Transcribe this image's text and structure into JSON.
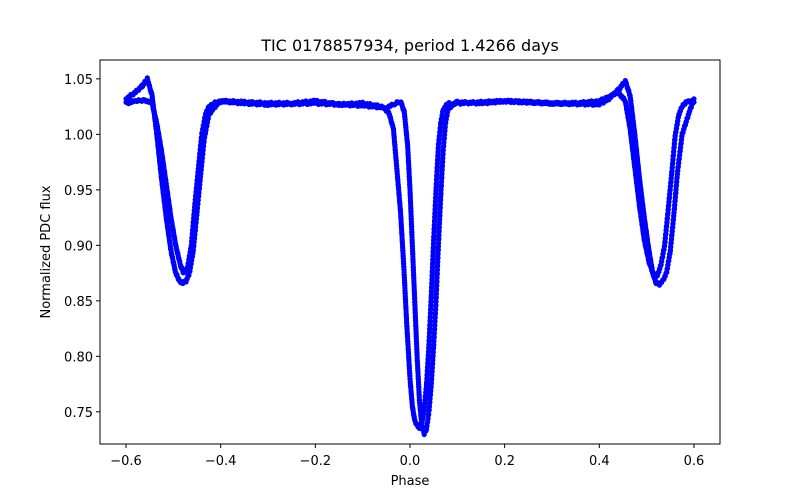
{
  "chart_data": {
    "type": "scatter",
    "title": "TIC 0178857934, period 1.4266 days",
    "xlabel": "Phase",
    "ylabel": "Normalized PDC flux",
    "xlim": [
      -0.655,
      0.655
    ],
    "ylim": [
      0.721,
      1.067
    ],
    "xticks": [
      -0.6,
      -0.4,
      -0.2,
      0.0,
      0.2,
      0.4,
      0.6
    ],
    "xtick_labels": [
      "−0.6",
      "−0.4",
      "−0.2",
      "0.0",
      "0.2",
      "0.4",
      "0.6"
    ],
    "yticks": [
      0.75,
      0.8,
      0.85,
      0.9,
      0.95,
      1.0,
      1.05
    ],
    "ytick_labels": [
      "0.75",
      "0.80",
      "0.85",
      "0.90",
      "0.95",
      "1.00",
      "1.05"
    ],
    "grid": false,
    "legend": "none",
    "marker_color": "#0000ff",
    "series": [
      {
        "x": [
          -0.6,
          -0.58,
          -0.56,
          -0.545,
          -0.535,
          -0.525,
          -0.515,
          -0.505,
          -0.495,
          -0.485,
          -0.478,
          -0.47,
          -0.462,
          -0.455,
          -0.447,
          -0.44,
          -0.432,
          -0.425,
          -0.415,
          -0.4,
          -0.35,
          -0.3,
          -0.25,
          -0.2,
          -0.15,
          -0.1,
          -0.06,
          -0.045,
          -0.035,
          -0.028,
          -0.02,
          -0.013,
          -0.007,
          0.0,
          0.005,
          0.01,
          0.015,
          0.02,
          0.025,
          0.03,
          0.035,
          0.04,
          0.045,
          0.05,
          0.055,
          0.06,
          0.065,
          0.07,
          0.08,
          0.09,
          0.1,
          0.15,
          0.2,
          0.25,
          0.3,
          0.35,
          0.4,
          0.42,
          0.44,
          0.455,
          0.465,
          0.475,
          0.485,
          0.495,
          0.505,
          0.515,
          0.522,
          0.53,
          0.538,
          0.545,
          0.553,
          0.56,
          0.568,
          0.575,
          0.585,
          0.6
        ],
        "y": [
          1.028,
          1.03,
          1.031,
          1.028,
          1.01,
          0.985,
          0.955,
          0.925,
          0.9,
          0.882,
          0.875,
          0.88,
          0.9,
          0.935,
          0.97,
          1.0,
          1.018,
          1.025,
          1.028,
          1.03,
          1.029,
          1.028,
          1.028,
          1.03,
          1.027,
          1.028,
          1.025,
          1.02,
          1.005,
          0.97,
          0.93,
          0.88,
          0.83,
          0.78,
          0.755,
          0.742,
          0.738,
          0.735,
          0.74,
          0.752,
          0.775,
          0.81,
          0.855,
          0.905,
          0.95,
          0.99,
          1.01,
          1.022,
          1.028,
          1.027,
          1.029,
          1.028,
          1.03,
          1.029,
          1.028,
          1.028,
          1.03,
          1.034,
          1.038,
          1.03,
          1.005,
          0.97,
          0.935,
          0.905,
          0.885,
          0.873,
          0.872,
          0.882,
          0.9,
          0.93,
          0.965,
          0.998,
          1.018,
          1.025,
          1.03,
          1.029
        ]
      },
      {
        "x": [
          -0.6,
          -0.58,
          -0.565,
          -0.555,
          -0.545,
          -0.535,
          -0.525,
          -0.515,
          -0.505,
          -0.495,
          -0.487,
          -0.48,
          -0.473,
          -0.466,
          -0.458,
          -0.45,
          -0.442,
          -0.435,
          -0.425,
          -0.41,
          -0.4,
          -0.35,
          -0.3,
          -0.2,
          -0.1,
          -0.05,
          -0.03,
          -0.02,
          -0.012,
          -0.005,
          0.0,
          0.005,
          0.01,
          0.015,
          0.02,
          0.025,
          0.03,
          0.035,
          0.04,
          0.045,
          0.05,
          0.055,
          0.06,
          0.065,
          0.07,
          0.075,
          0.08,
          0.09,
          0.1,
          0.2,
          0.3,
          0.4,
          0.42,
          0.44,
          0.455,
          0.465,
          0.475,
          0.485,
          0.495,
          0.505,
          0.513,
          0.52,
          0.527,
          0.534,
          0.542,
          0.55,
          0.558,
          0.565,
          0.575,
          0.59,
          0.6
        ],
        "y": [
          1.032,
          1.038,
          1.044,
          1.05,
          1.035,
          1.0,
          0.96,
          0.925,
          0.895,
          0.875,
          0.868,
          0.866,
          0.868,
          0.875,
          0.895,
          0.93,
          0.965,
          0.995,
          1.018,
          1.026,
          1.03,
          1.028,
          1.027,
          1.028,
          1.026,
          1.024,
          1.028,
          1.03,
          1.02,
          0.99,
          0.95,
          0.9,
          0.85,
          0.8,
          0.76,
          0.738,
          0.73,
          0.735,
          0.75,
          0.775,
          0.81,
          0.85,
          0.9,
          0.945,
          0.985,
          1.01,
          1.022,
          1.027,
          1.028,
          1.03,
          1.028,
          1.027,
          1.032,
          1.04,
          1.048,
          1.035,
          1.0,
          0.96,
          0.925,
          0.895,
          0.875,
          0.866,
          0.865,
          0.868,
          0.875,
          0.895,
          0.93,
          0.965,
          1.0,
          1.02,
          1.032
        ]
      }
    ]
  }
}
